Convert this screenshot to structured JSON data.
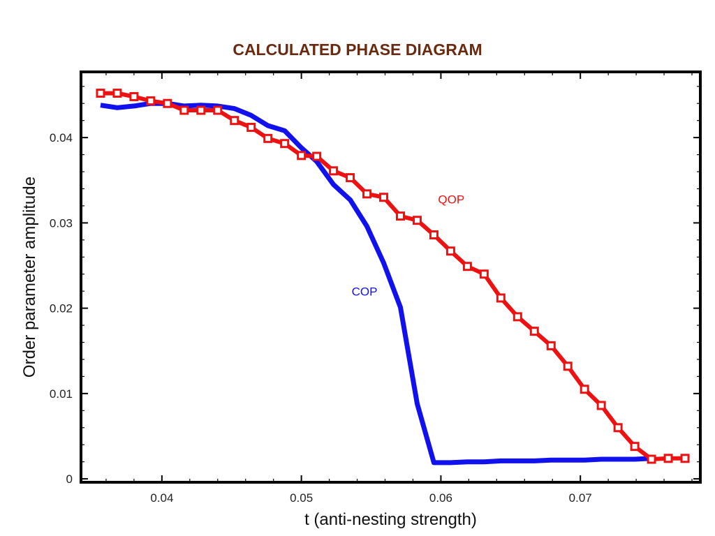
{
  "chart_data": {
    "type": "line",
    "title": "CALCULATED PHASE DIAGRAM",
    "xlabel": "t (anti-nesting strength)",
    "ylabel": "Order parameter amplitude",
    "xlim": [
      0.0342,
      0.0786
    ],
    "ylim": [
      -0.0004,
      0.0477
    ],
    "xticks": [
      0.04,
      0.05,
      0.06,
      0.07
    ],
    "yticks": [
      0,
      0.01,
      0.02,
      0.03,
      0.04
    ],
    "xtick_labels": [
      "0.04",
      "0.05",
      "0.06",
      "0.07"
    ],
    "ytick_labels": [
      "0",
      "0.01",
      "0.02",
      "0.03",
      "0.04"
    ],
    "grid": false,
    "series": [
      {
        "name": "QOP",
        "color": "#ee1111",
        "marker": "square",
        "x": [
          0.0356,
          0.0368,
          0.038,
          0.0392,
          0.0404,
          0.0416,
          0.0428,
          0.044,
          0.0452,
          0.0464,
          0.0476,
          0.0488,
          0.05,
          0.0511,
          0.0523,
          0.0535,
          0.0547,
          0.0559,
          0.0571,
          0.0583,
          0.0595,
          0.0607,
          0.0619,
          0.0631,
          0.0643,
          0.0655,
          0.0667,
          0.0679,
          0.0691,
          0.0703,
          0.0715,
          0.0727,
          0.0739,
          0.0751,
          0.0763,
          0.0775
        ],
        "y": [
          0.0452,
          0.0452,
          0.0448,
          0.0443,
          0.044,
          0.0432,
          0.0432,
          0.0432,
          0.042,
          0.0412,
          0.0399,
          0.0393,
          0.0379,
          0.0378,
          0.0361,
          0.0353,
          0.0334,
          0.033,
          0.0308,
          0.0303,
          0.0286,
          0.0267,
          0.0249,
          0.024,
          0.0212,
          0.019,
          0.0173,
          0.0156,
          0.0132,
          0.0105,
          0.0086,
          0.006,
          0.0038,
          0.0023,
          0.0024,
          0.0024
        ]
      },
      {
        "name": "COP",
        "color": "#1111ee",
        "marker": "none",
        "x": [
          0.0356,
          0.0368,
          0.038,
          0.0392,
          0.0404,
          0.0416,
          0.0428,
          0.044,
          0.0452,
          0.0464,
          0.0476,
          0.0488,
          0.05,
          0.0511,
          0.0523,
          0.0535,
          0.0547,
          0.0559,
          0.0571,
          0.0583,
          0.0595,
          0.0607,
          0.0619,
          0.0631,
          0.0643,
          0.0655,
          0.0667,
          0.0679,
          0.0691,
          0.0703,
          0.0715,
          0.0727,
          0.0739,
          0.0751
        ],
        "y": [
          0.0438,
          0.0435,
          0.0437,
          0.044,
          0.044,
          0.0437,
          0.0438,
          0.0437,
          0.0434,
          0.0426,
          0.0414,
          0.0408,
          0.0388,
          0.0372,
          0.0345,
          0.0327,
          0.0296,
          0.0253,
          0.0201,
          0.0088,
          0.0019,
          0.0019,
          0.002,
          0.002,
          0.0021,
          0.0021,
          0.0021,
          0.0022,
          0.0022,
          0.0022,
          0.0023,
          0.0023,
          0.0023,
          0.0024
        ]
      }
    ],
    "annotations": [
      {
        "text": "QOP",
        "x": 0.0598,
        "y": 0.0323,
        "color": "#ee1111"
      },
      {
        "text": "COP",
        "x": 0.0536,
        "y": 0.0215,
        "color": "#1111ee"
      }
    ]
  }
}
